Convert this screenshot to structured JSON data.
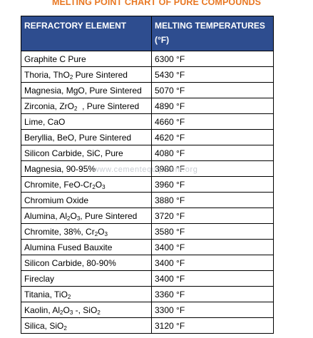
{
  "document": {
    "title": "MELTING POINT CHART OF PURE COMPOUNDS",
    "watermark": "www.cementequipment.org"
  },
  "table": {
    "headers": {
      "element": "REFRACTORY ELEMENT",
      "temperature": "MELTING TEMPERATURES (°F)"
    },
    "rows": [
      {
        "parts": [
          [
            "Graphite C Pure",
            ""
          ]
        ],
        "temp": "6300 °F"
      },
      {
        "parts": [
          [
            "Thoria, ThO",
            ""
          ],
          [
            "2",
            "sub"
          ],
          [
            " Pure Sintered",
            ""
          ]
        ],
        "temp": "5430 °F"
      },
      {
        "parts": [
          [
            "Magnesia, MgO, Pure Sintered",
            ""
          ]
        ],
        "temp": "5070 °F"
      },
      {
        "parts": [
          [
            "Zirconia, ZrO",
            ""
          ],
          [
            "2",
            "sub"
          ],
          [
            "  , Pure Sintered",
            ""
          ]
        ],
        "temp": "4890 °F"
      },
      {
        "parts": [
          [
            "Lime, CaO",
            ""
          ]
        ],
        "temp": "4660 °F"
      },
      {
        "parts": [
          [
            "Beryllia, BeO, Pure Sintered",
            ""
          ]
        ],
        "temp": "4620 °F"
      },
      {
        "parts": [
          [
            "Silicon Carbide, SiC, Pure",
            ""
          ]
        ],
        "temp": "4080 °F"
      },
      {
        "parts": [
          [
            "Magnesia, 90-95%",
            ""
          ]
        ],
        "temp": "3980 °F"
      },
      {
        "parts": [
          [
            "Chromite, FeO-Cr",
            ""
          ],
          [
            "2",
            "sub"
          ],
          [
            "O",
            ""
          ],
          [
            "3",
            "sub"
          ]
        ],
        "temp": "3960 °F"
      },
      {
        "parts": [
          [
            "Chromium Oxide",
            ""
          ]
        ],
        "temp": "3880 °F"
      },
      {
        "parts": [
          [
            "Alumina, Al",
            ""
          ],
          [
            "2",
            "sub"
          ],
          [
            "O",
            ""
          ],
          [
            "3",
            "sub"
          ],
          [
            ", Pure Sintered",
            ""
          ]
        ],
        "temp": "3720 °F"
      },
      {
        "parts": [
          [
            "Chromite, 38%, Cr",
            ""
          ],
          [
            "2",
            "sub"
          ],
          [
            "O",
            ""
          ],
          [
            "3",
            "sub"
          ]
        ],
        "temp": "3580 °F"
      },
      {
        "parts": [
          [
            "Alumina Fused Bauxite",
            ""
          ]
        ],
        "temp": "3400 °F"
      },
      {
        "parts": [
          [
            "Silicon Carbide, 80-90%",
            ""
          ]
        ],
        "temp": "3400 °F"
      },
      {
        "parts": [
          [
            "Fireclay",
            ""
          ]
        ],
        "temp": "3400 °F"
      },
      {
        "parts": [
          [
            "Titania, TiO",
            ""
          ],
          [
            "2",
            "sub"
          ]
        ],
        "temp": "3360 °F"
      },
      {
        "parts": [
          [
            "Kaolin, Al",
            ""
          ],
          [
            "2",
            "sub"
          ],
          [
            "O",
            ""
          ],
          [
            "3",
            "sub"
          ],
          [
            " -, SiO",
            ""
          ],
          [
            "2",
            "sub"
          ]
        ],
        "temp": "3300 °F"
      },
      {
        "parts": [
          [
            "Silica, SiO",
            ""
          ],
          [
            "2",
            "sub"
          ]
        ],
        "temp": "3120 °F"
      }
    ]
  },
  "colors": {
    "title": "#e87722",
    "header_bg": "#2e4d8f",
    "header_text": "#ffffff",
    "border": "#000000"
  }
}
